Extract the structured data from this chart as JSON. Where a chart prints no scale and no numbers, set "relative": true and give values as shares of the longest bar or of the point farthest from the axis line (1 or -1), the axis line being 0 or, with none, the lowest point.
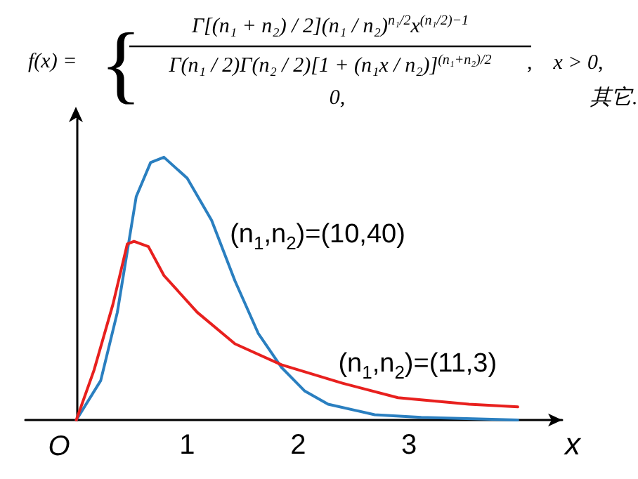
{
  "chart_data": {
    "type": "line",
    "relative": true,
    "xlabel": "x",
    "xlim": [
      -0.46,
      4.38
    ],
    "xticks": [
      1,
      2,
      3
    ],
    "grid": false,
    "legend": false,
    "marker": "none",
    "line_style": "solid",
    "annotations": [
      "f(x) =",
      "Γ[(n₁ + n₂) / 2](n₁ / n₂)$^{n₁/2}$x$^{(n₁/2)−1}$",
      "Γ(n₁ / 2)Γ(n₂ / 2)[1 + (n₁x / n₂)]$^{(n₁+n₂)/2}$",
      ",    x > 0,",
      "0,",
      "其它.",
      "{",
      "O"
    ],
    "series": [
      {
        "name": "(n$_{1}$,n$_{2}$)=(10,40)",
        "color": "#2a7fc0",
        "x": [
          0,
          0.22,
          0.37,
          0.54,
          0.67,
          0.79,
          1.0,
          1.22,
          1.43,
          1.64,
          1.85,
          2.06,
          2.27,
          2.69,
          3.11,
          3.98
        ],
        "values": [
          0,
          0.15,
          0.41,
          0.85,
          0.98,
          1,
          0.92,
          0.76,
          0.53,
          0.33,
          0.2,
          0.11,
          0.06,
          0.02,
          0.01,
          0
        ]
      },
      {
        "name": "(n$_{1}$,n$_{2}$)=(11,3)",
        "color": "#e8201e",
        "x": [
          0,
          0.16,
          0.33,
          0.46,
          0.52,
          0.65,
          0.79,
          1.09,
          1.43,
          1.85,
          2.4,
          2.9,
          3.54,
          3.98
        ],
        "values": [
          0,
          0.19,
          0.44,
          0.67,
          0.68,
          0.66,
          0.55,
          0.41,
          0.29,
          0.21,
          0.14,
          0.085,
          0.06,
          0.05
        ]
      }
    ]
  }
}
